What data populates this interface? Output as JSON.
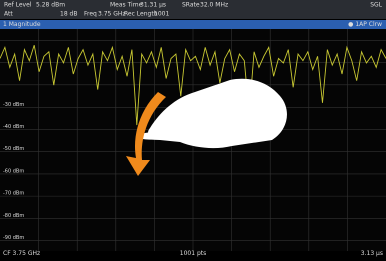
{
  "header": {
    "row1": [
      {
        "label": "Ref Level",
        "value": "5.28 dBm"
      },
      {
        "label": "Meas Time",
        "value": "31.31 µs"
      },
      {
        "label": "SRate",
        "value": "32.0 MHz"
      }
    ],
    "mode": "SGL",
    "row2": [
      {
        "label": "Att",
        "value": "18 dB"
      },
      {
        "label": "Freq",
        "value": "3.75 GHz"
      },
      {
        "label": "Rec Length",
        "value": "1001"
      }
    ]
  },
  "panel": {
    "title": "1 Magnitude",
    "trace_label": "● 1AP Clrw"
  },
  "chart_data": {
    "type": "line",
    "color": "#c8c832",
    "ylim": [
      -94.72,
      5.28
    ],
    "yticks": [
      {
        "value": -30,
        "label": "-30 dBm"
      },
      {
        "value": -40,
        "label": "-40 dBm"
      },
      {
        "value": -50,
        "label": "-50 dBm"
      },
      {
        "value": -60,
        "label": "-60 dBm"
      },
      {
        "value": -70,
        "label": "-70 dBm"
      },
      {
        "value": -80,
        "label": "-80 dBm"
      },
      {
        "value": -90,
        "label": "-90 dBm"
      }
    ],
    "values": [
      -8,
      -3,
      -12,
      -6,
      -18,
      -4,
      -9,
      -2,
      -14,
      -7,
      -5,
      -20,
      -6,
      -10,
      -3,
      -15,
      -8,
      -4,
      -11,
      -6,
      -22,
      -5,
      -9,
      -3,
      -13,
      -7,
      -16,
      -4,
      -38,
      -6,
      -10,
      -5,
      -12,
      -3,
      -17,
      -8,
      -6,
      -25,
      -4,
      -9,
      -7,
      -13,
      -3,
      -11,
      -5,
      -19,
      -8,
      -4,
      -14,
      -6,
      -9,
      -33,
      -5,
      -12,
      -7,
      -3,
      -16,
      -8,
      -10,
      -4,
      -21,
      -6,
      -9,
      -5,
      -13,
      -7,
      -28,
      -4,
      -11,
      -6,
      -15,
      -3,
      -9,
      -18,
      -5,
      -10,
      -7,
      -12,
      -4,
      -8
    ],
    "footer": {
      "left": "CF 3.75 GHz",
      "center": "1001 pts",
      "right": "3.13 µs"
    }
  }
}
